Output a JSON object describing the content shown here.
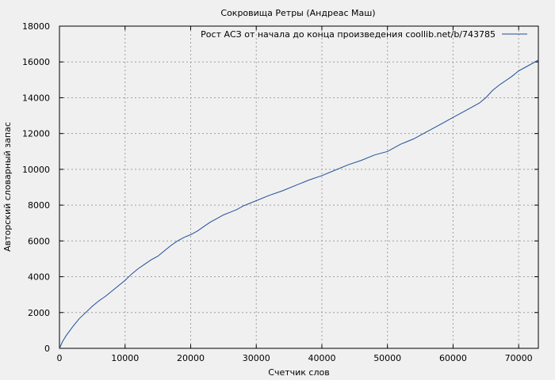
{
  "chart_data": {
    "type": "line",
    "title": "Сокровища Ретры (Андреас Маш)",
    "xlabel": "Счетчик слов",
    "ylabel": "Авторский словарный запас",
    "xlim": [
      0,
      73000
    ],
    "ylim": [
      0,
      18000
    ],
    "x_ticks": [
      0,
      10000,
      20000,
      30000,
      40000,
      50000,
      60000,
      70000
    ],
    "y_ticks": [
      0,
      2000,
      4000,
      6000,
      8000,
      10000,
      12000,
      14000,
      16000,
      18000
    ],
    "x_tick_labels": [
      "0",
      "10000",
      "20000",
      "30000",
      "40000",
      "50000",
      "60000",
      "70000"
    ],
    "y_tick_labels": [
      "0",
      "2000",
      "4000",
      "6000",
      "8000",
      "10000",
      "12000",
      "14000",
      "16000",
      "18000"
    ],
    "grid": true,
    "legend_position": "top-right",
    "colors": {
      "series": "#1f4e9a",
      "background": "#f0f0f0",
      "grid": "#a0a0a0"
    },
    "series": [
      {
        "name": "Рост АСЗ от начала до конца произведения coollib.net/b/743785",
        "x": [
          0,
          500,
          1000,
          2000,
          3000,
          4000,
          5000,
          6000,
          7000,
          8000,
          9000,
          10000,
          11000,
          12000,
          13000,
          14000,
          15000,
          16000,
          17000,
          18000,
          19000,
          20000,
          21000,
          22000,
          23000,
          24000,
          25000,
          26000,
          27000,
          28000,
          29000,
          30000,
          32000,
          34000,
          36000,
          38000,
          40000,
          42000,
          44000,
          46000,
          48000,
          50000,
          52000,
          54000,
          56000,
          58000,
          60000,
          62000,
          64000,
          65000,
          66000,
          67000,
          68000,
          69000,
          70000,
          71000,
          72000,
          73000
        ],
        "y": [
          0,
          400,
          700,
          1200,
          1650,
          2000,
          2350,
          2650,
          2900,
          3200,
          3500,
          3800,
          4150,
          4450,
          4700,
          4950,
          5150,
          5450,
          5750,
          6000,
          6200,
          6350,
          6550,
          6800,
          7050,
          7250,
          7450,
          7600,
          7750,
          7950,
          8100,
          8250,
          8550,
          8800,
          9100,
          9400,
          9650,
          9950,
          10250,
          10500,
          10800,
          11000,
          11400,
          11700,
          12100,
          12500,
          12900,
          13300,
          13700,
          14000,
          14400,
          14700,
          14950,
          15200,
          15500,
          15700,
          15900,
          16100
        ]
      }
    ]
  }
}
